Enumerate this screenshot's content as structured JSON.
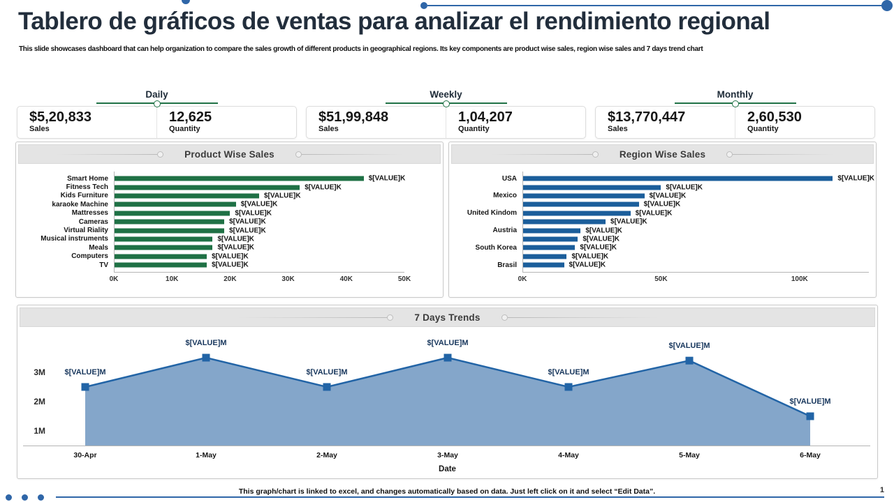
{
  "page": {
    "title": "Tablero de gráficos de ventas para analizar el rendimiento regional",
    "subtitle": "This slide showcases dashboard that can help organization to compare the sales growth of different products in geographical regions. Its key components are product wise sales, region wise sales and 7 days trend chart",
    "footer_note": "This graph/chart is linked to excel, and changes automatically based on data. Just left click on it and select “Edit Data”.",
    "page_number": "1"
  },
  "colors": {
    "accent_green": "#1f7145",
    "accent_blue": "#1b5e9b",
    "trend_line": "#2264a6",
    "trend_fill": "#7da1c7",
    "value_label_navy": "#17365c",
    "decor_blue": "#2f66a8"
  },
  "kpis": [
    {
      "period": "Daily",
      "sales_value": "$5,20,833",
      "sales_label": "Sales",
      "quantity_value": "12,625",
      "quantity_label": "Quantity"
    },
    {
      "period": "Weekly",
      "sales_value": "$51,99,848",
      "sales_label": "Sales",
      "quantity_value": "1,04,207",
      "quantity_label": "Quantity"
    },
    {
      "period": "Monthly",
      "sales_value": "$13,770,447",
      "sales_label": "Sales",
      "quantity_value": "2,60,530",
      "quantity_label": "Quantity"
    }
  ],
  "chart_data": [
    {
      "type": "bar",
      "orientation": "horizontal",
      "title": "Product Wise Sales",
      "categories": [
        "Smart Home",
        "Fitness Tech",
        "Kids Furniture",
        "karaoke Machine",
        "Mattresses",
        "Cameras",
        "Virtual Riality",
        "Musical instruments",
        "Meals",
        "Computers",
        "TV"
      ],
      "values": [
        43,
        32,
        25,
        21,
        20,
        19,
        19,
        17,
        17,
        16,
        16
      ],
      "value_label": "$[VALUE]K",
      "x_ticks": [
        "0K",
        "10K",
        "20K",
        "30K",
        "40K",
        "50K"
      ],
      "xlim": [
        0,
        50
      ],
      "bar_color": "#1f7145",
      "grid": false,
      "legend": false
    },
    {
      "type": "bar",
      "orientation": "horizontal",
      "title": "Region Wise Sales",
      "categories": [
        "USA",
        "",
        "Mexico",
        "",
        "United Kindom",
        "",
        "Austria",
        "",
        "South Korea",
        "",
        "Brasil"
      ],
      "values": [
        112,
        50,
        44,
        42,
        39,
        30,
        21,
        20,
        19,
        16,
        15
      ],
      "value_label": "$[VALUE]K",
      "x_ticks": [
        "0K",
        "50K",
        "100K"
      ],
      "xlim": [
        0,
        125
      ],
      "bar_color": "#1b5e9b",
      "grid": false,
      "legend": false
    },
    {
      "type": "area",
      "title": "7 Days Trends",
      "x": [
        "30-Apr",
        "1-May",
        "2-May",
        "3-May",
        "4-May",
        "5-May",
        "6-May"
      ],
      "values": [
        2.5,
        3.5,
        2.5,
        3.5,
        2.5,
        3.4,
        1.5
      ],
      "value_label": "$[VALUE]M",
      "y_ticks": [
        "3M",
        "2M",
        "1M"
      ],
      "xlabel": "Date",
      "ylim": [
        0.5,
        4.0
      ],
      "line_color": "#2264a6",
      "fill_color": "#7da1c7",
      "marker": "square",
      "grid": false,
      "legend": false
    }
  ]
}
